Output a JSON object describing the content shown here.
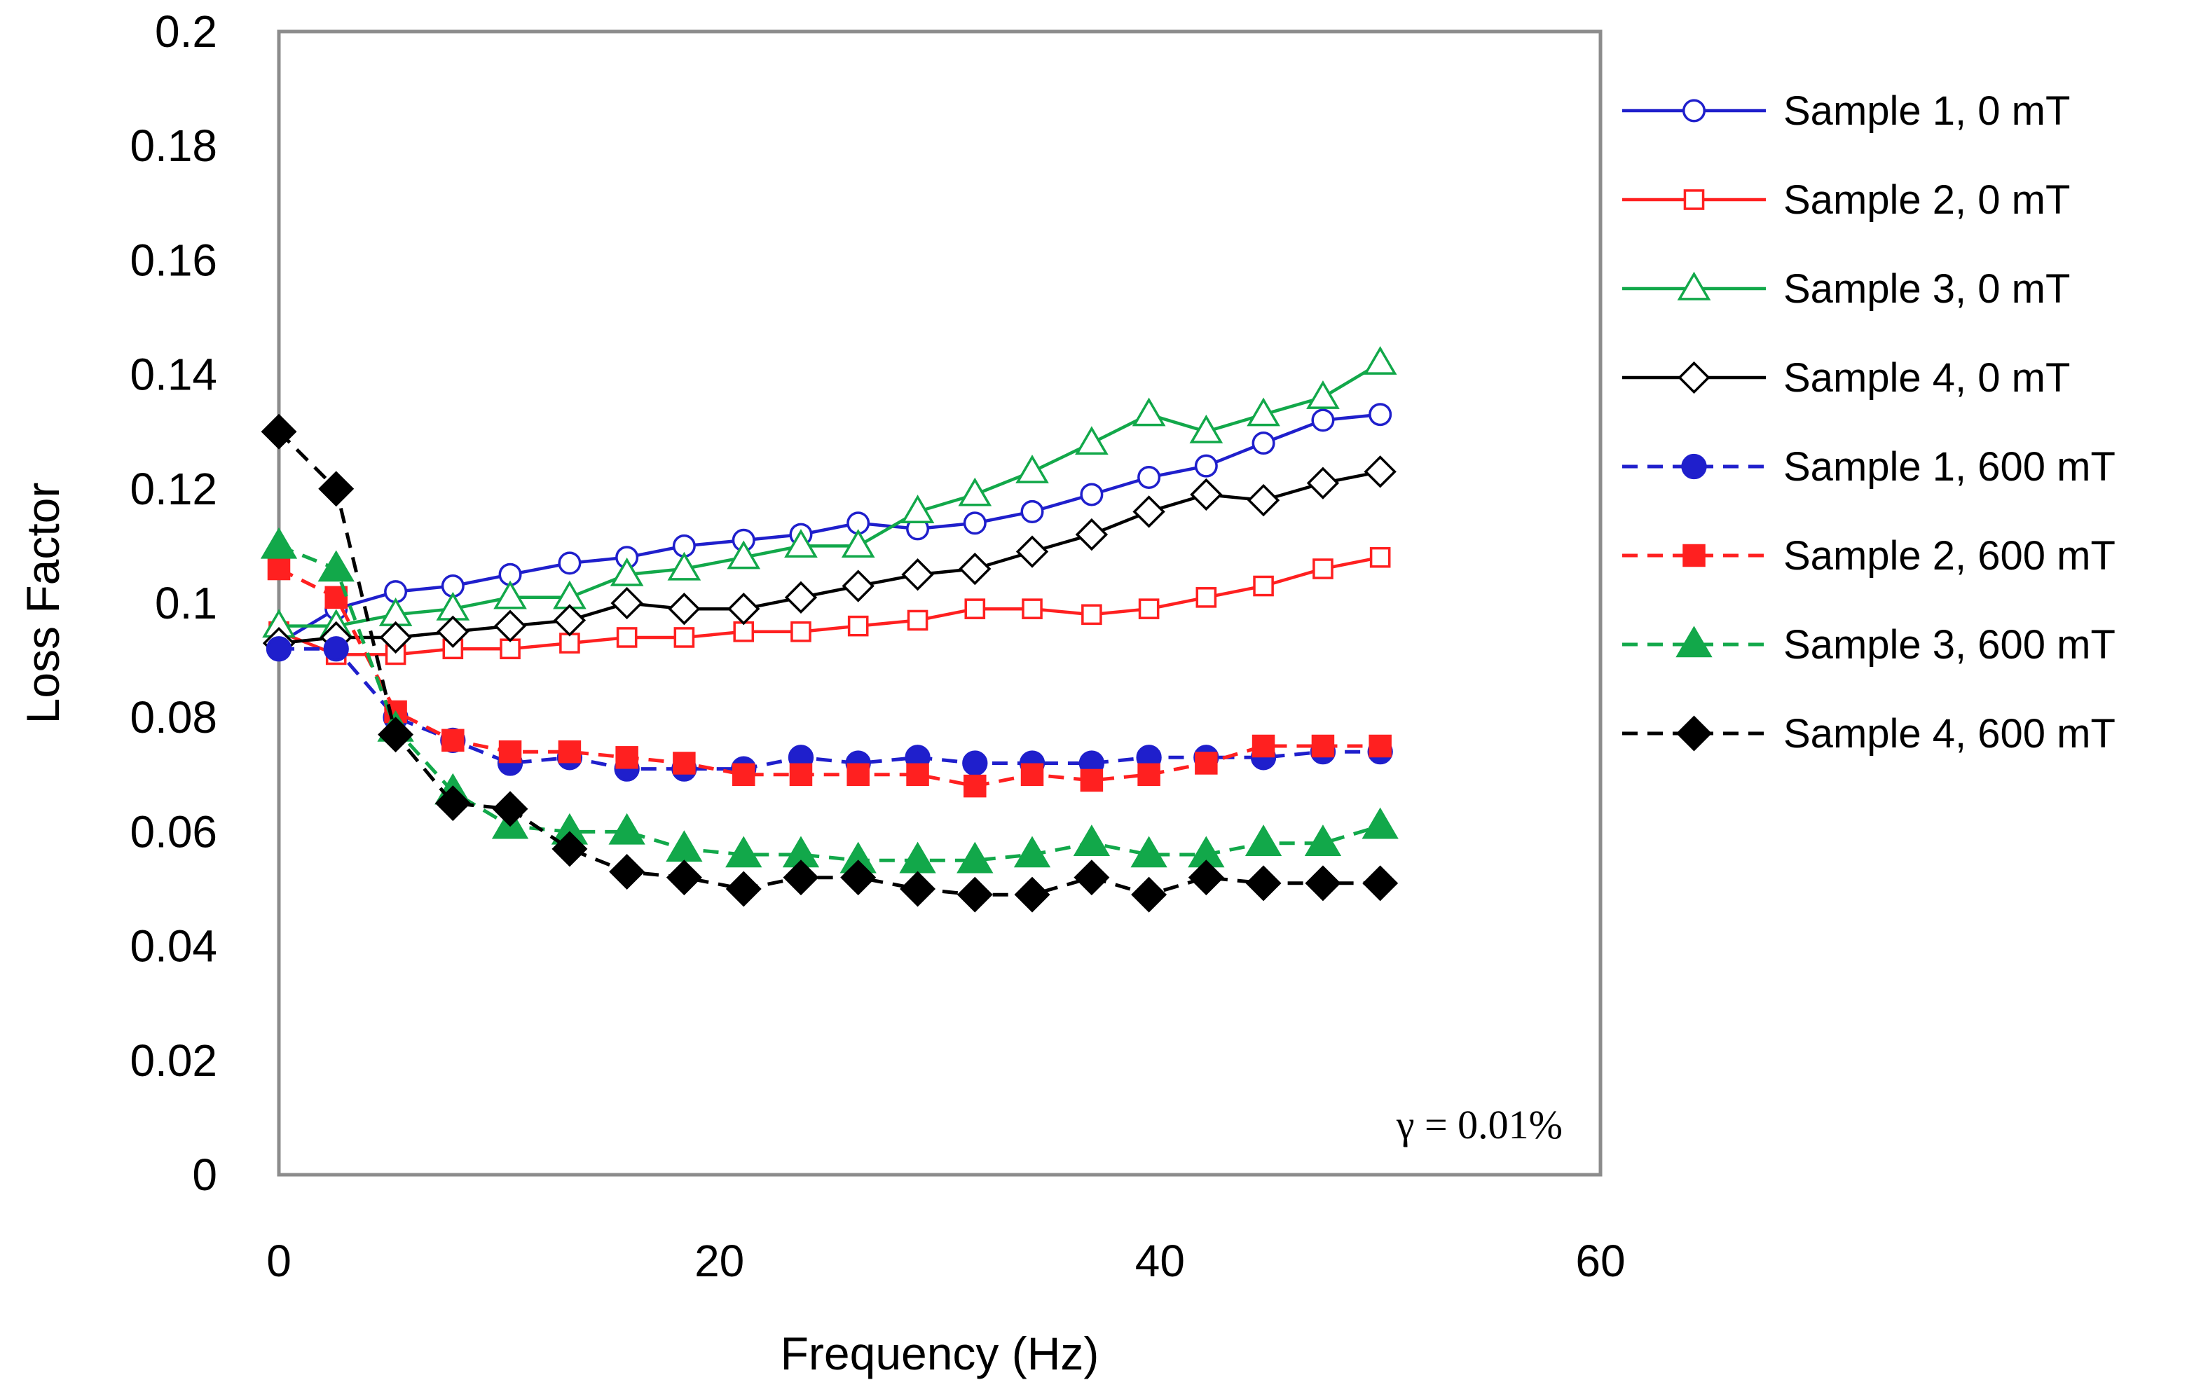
{
  "chart_data": {
    "type": "line",
    "title": "",
    "xlabel": "Frequency (Hz)",
    "ylabel": "Loss Factor",
    "xlim": [
      0,
      60
    ],
    "ylim": [
      0,
      0.2
    ],
    "xticks": [
      "0",
      "20",
      "40",
      "60"
    ],
    "yticks": [
      "0",
      "0.02",
      "0.04",
      "0.06",
      "0.08",
      "0.1",
      "0.12",
      "0.14",
      "0.16",
      "0.18",
      "0.2"
    ],
    "grid": false,
    "legend_position": "right",
    "annotation": "γ = 0.01%",
    "x": [
      0,
      2.6,
      5.3,
      7.9,
      10.5,
      13.2,
      15.8,
      18.4,
      21.1,
      23.7,
      26.3,
      29.0,
      31.6,
      34.2,
      36.9,
      39.5,
      42.1,
      44.7,
      47.4,
      50.0
    ],
    "series": [
      {
        "name": "Sample 1, 0 mT",
        "color": "#1f1fcc",
        "marker": "circle",
        "filled": false,
        "dashed": false,
        "values": [
          0.093,
          0.099,
          0.102,
          0.103,
          0.105,
          0.107,
          0.108,
          0.11,
          0.111,
          0.112,
          0.114,
          0.113,
          0.114,
          0.116,
          0.119,
          0.122,
          0.124,
          0.128,
          0.132,
          0.133
        ]
      },
      {
        "name": "Sample 2, 0 mT",
        "color": "#ff2020",
        "marker": "square",
        "filled": false,
        "dashed": false,
        "values": [
          0.095,
          0.091,
          0.091,
          0.092,
          0.092,
          0.093,
          0.094,
          0.094,
          0.095,
          0.095,
          0.096,
          0.097,
          0.099,
          0.099,
          0.098,
          0.099,
          0.101,
          0.103,
          0.106,
          0.108
        ]
      },
      {
        "name": "Sample 3, 0 mT",
        "color": "#12a84a",
        "marker": "triangle",
        "filled": false,
        "dashed": false,
        "values": [
          0.096,
          0.096,
          0.098,
          0.099,
          0.101,
          0.101,
          0.105,
          0.106,
          0.108,
          0.11,
          0.11,
          0.116,
          0.119,
          0.123,
          0.128,
          0.133,
          0.13,
          0.133,
          0.136,
          0.142
        ]
      },
      {
        "name": "Sample 4, 0 mT",
        "color": "#000000",
        "marker": "diamond",
        "filled": false,
        "dashed": false,
        "values": [
          0.093,
          0.094,
          0.094,
          0.095,
          0.096,
          0.097,
          0.1,
          0.099,
          0.099,
          0.101,
          0.103,
          0.105,
          0.106,
          0.109,
          0.112,
          0.116,
          0.119,
          0.118,
          0.121,
          0.123
        ]
      },
      {
        "name": "Sample 1, 600 mT",
        "color": "#1f1fcc",
        "marker": "circle",
        "filled": true,
        "dashed": true,
        "values": [
          0.092,
          0.092,
          0.08,
          0.076,
          0.072,
          0.073,
          0.071,
          0.071,
          0.071,
          0.073,
          0.072,
          0.073,
          0.072,
          0.072,
          0.072,
          0.073,
          0.073,
          0.073,
          0.074,
          0.074
        ]
      },
      {
        "name": "Sample 2, 600 mT",
        "color": "#ff2020",
        "marker": "square",
        "filled": true,
        "dashed": true,
        "values": [
          0.106,
          0.101,
          0.081,
          0.076,
          0.074,
          0.074,
          0.073,
          0.072,
          0.07,
          0.07,
          0.07,
          0.07,
          0.068,
          0.07,
          0.069,
          0.07,
          0.072,
          0.075,
          0.075,
          0.075
        ]
      },
      {
        "name": "Sample 3, 600 mT",
        "color": "#12a84a",
        "marker": "triangle",
        "filled": true,
        "dashed": true,
        "values": [
          0.11,
          0.106,
          0.078,
          0.067,
          0.061,
          0.06,
          0.06,
          0.057,
          0.056,
          0.056,
          0.055,
          0.055,
          0.055,
          0.056,
          0.058,
          0.056,
          0.056,
          0.058,
          0.058,
          0.061
        ]
      },
      {
        "name": "Sample 4, 600 mT",
        "color": "#000000",
        "marker": "diamond",
        "filled": true,
        "dashed": true,
        "values": [
          0.13,
          0.12,
          0.077,
          0.065,
          0.064,
          0.057,
          0.053,
          0.052,
          0.05,
          0.052,
          0.052,
          0.05,
          0.049,
          0.049,
          0.052,
          0.049,
          0.052,
          0.051,
          0.051,
          0.051
        ]
      }
    ]
  }
}
